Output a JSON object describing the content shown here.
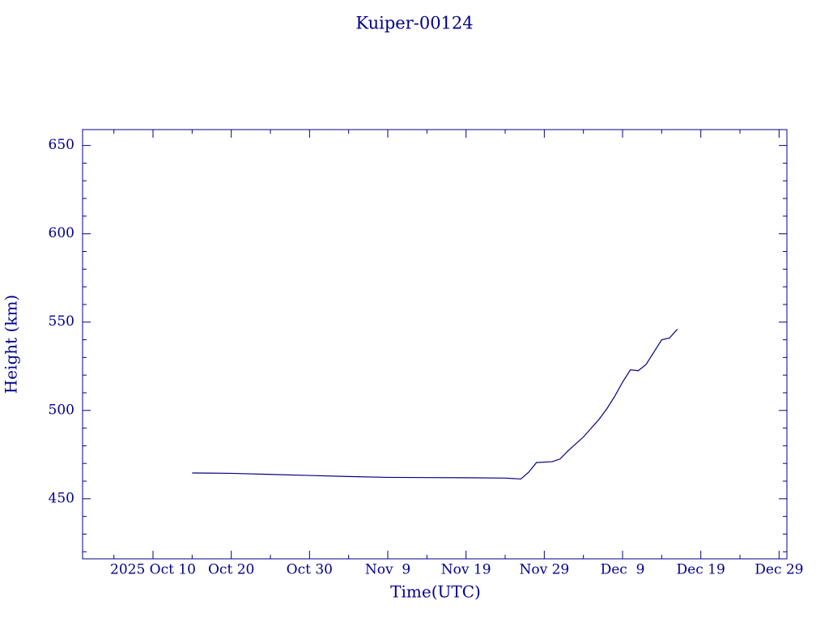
{
  "chart_data": {
    "type": "line",
    "title": "Kuiper-00124",
    "xlabel": "Time(UTC)",
    "ylabel": "Height (km)",
    "x": [
      "2025-10-15",
      "2025-10-20",
      "2025-10-25",
      "2025-10-30",
      "2025-11-04",
      "2025-11-09",
      "2025-11-14",
      "2025-11-19",
      "2025-11-24",
      "2025-11-26",
      "2025-11-27",
      "2025-11-28",
      "2025-11-30",
      "2025-12-01",
      "2025-12-02",
      "2025-12-03",
      "2025-12-04",
      "2025-12-05",
      "2025-12-06",
      "2025-12-07",
      "2025-12-08",
      "2025-12-09",
      "2025-12-10",
      "2025-12-11",
      "2025-12-12",
      "2025-12-13",
      "2025-12-14",
      "2025-12-15",
      "2025-12-16"
    ],
    "series": [
      {
        "color": "#000080",
        "values": [
          464.6,
          464.4,
          463.8,
          463.2,
          462.6,
          462.1,
          462.0,
          461.9,
          461.7,
          461.2,
          465,
          470.5,
          471,
          472.5,
          477,
          481,
          485,
          490,
          495,
          501,
          508,
          516,
          523,
          522.5,
          526,
          533,
          540,
          541,
          546
        ]
      }
    ],
    "xlim": [
      "2025-10-01",
      "2025-12-30"
    ],
    "xticks": [
      {
        "value": "2025-10-10",
        "label": "2025 Oct 10"
      },
      {
        "value": "2025-10-20",
        "label": "Oct 20"
      },
      {
        "value": "2025-10-30",
        "label": "Oct 30"
      },
      {
        "value": "2025-11-09",
        "label": "Nov  9"
      },
      {
        "value": "2025-11-19",
        "label": "Nov 19"
      },
      {
        "value": "2025-11-29",
        "label": "Nov 29"
      },
      {
        "value": "2025-12-09",
        "label": "Dec  9"
      },
      {
        "value": "2025-12-19",
        "label": "Dec 19"
      },
      {
        "value": "2025-12-29",
        "label": "Dec 29"
      }
    ],
    "xminorticks": [
      "2025-10-05",
      "2025-10-15",
      "2025-10-25",
      "2025-11-04",
      "2025-11-14",
      "2025-11-24",
      "2025-12-04",
      "2025-12-14",
      "2025-12-24"
    ],
    "ylim": [
      416,
      659
    ],
    "yticks": [
      450,
      500,
      550,
      600,
      650
    ],
    "yminorticks": [
      420,
      430,
      440,
      460,
      470,
      480,
      490,
      510,
      520,
      530,
      540,
      560,
      570,
      580,
      590,
      610,
      620,
      630,
      640
    ],
    "axis_color": "#00008b"
  }
}
